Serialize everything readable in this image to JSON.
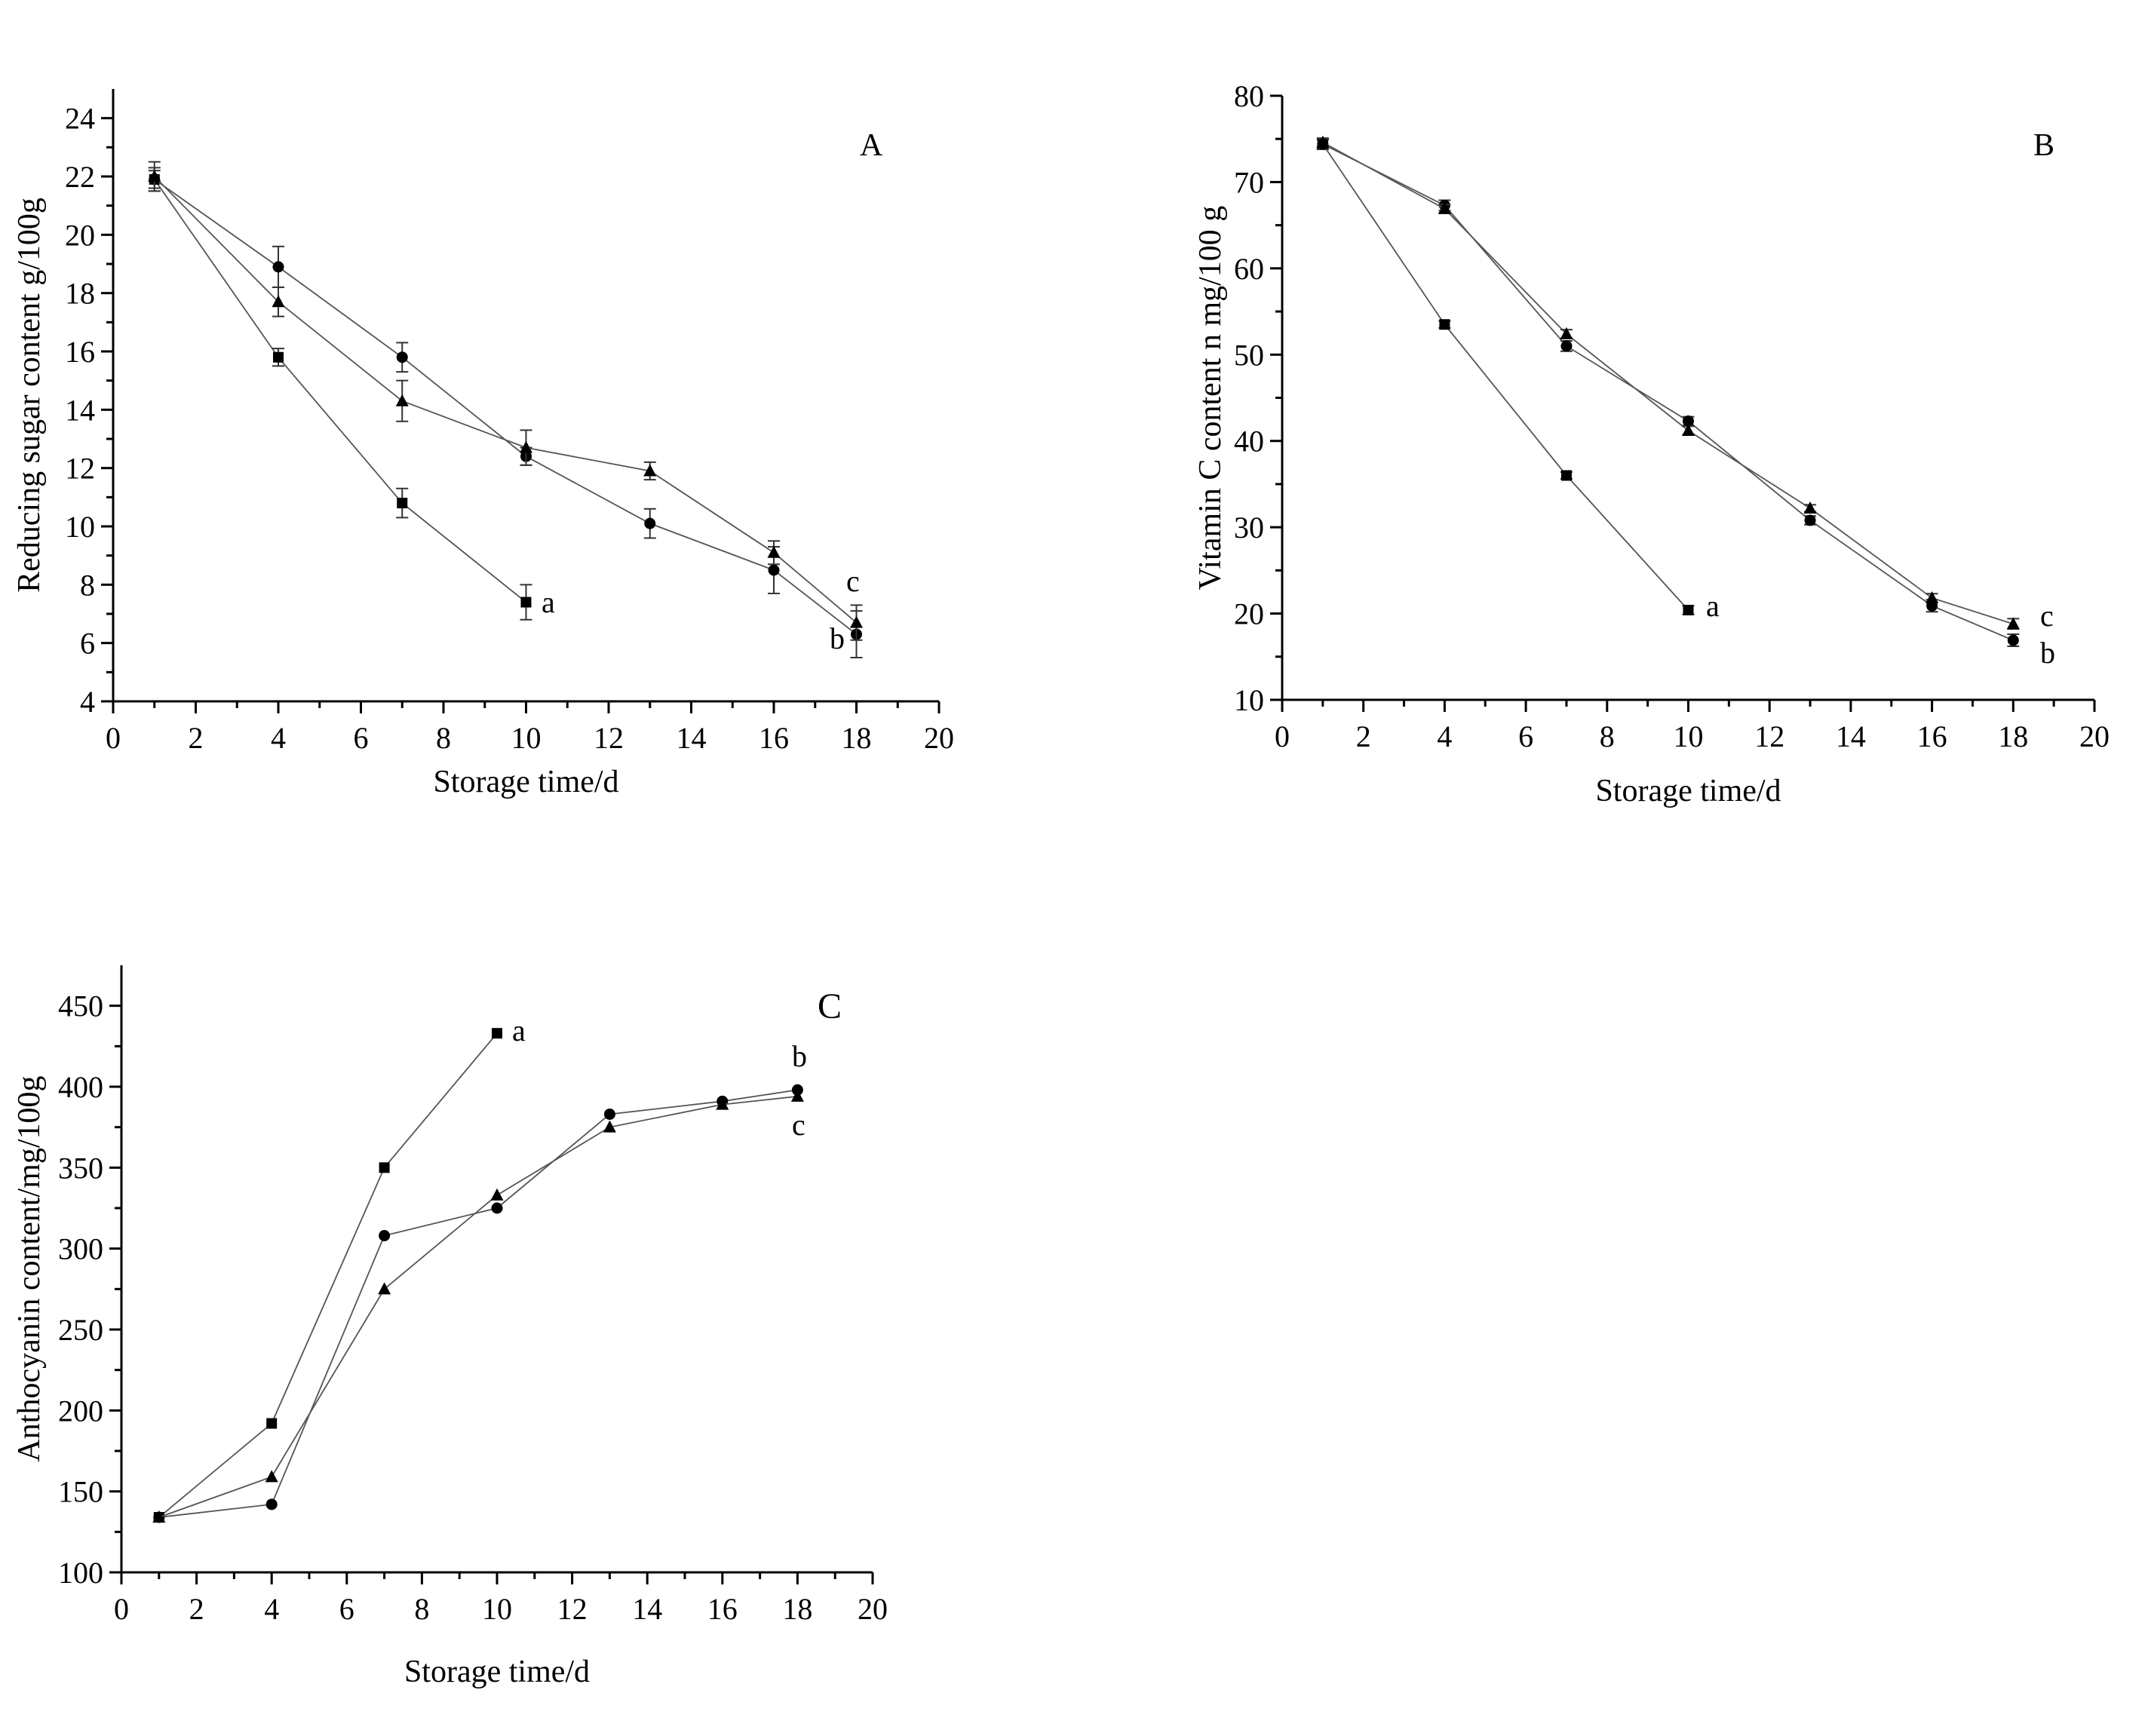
{
  "chart_data": [
    {
      "id": "A",
      "type": "line",
      "panel_label": "A",
      "xlabel": "Storage time/d",
      "ylabel": "Reducing sugar content g/100g",
      "xlim": [
        0,
        20
      ],
      "ylim": [
        4,
        25
      ],
      "xticks": [
        0,
        2,
        4,
        6,
        8,
        10,
        12,
        14,
        16,
        18,
        20
      ],
      "yticks": [
        4,
        6,
        8,
        10,
        12,
        14,
        16,
        18,
        20,
        22,
        24
      ],
      "series": [
        {
          "name": "a",
          "marker": "square",
          "x": [
            1,
            4,
            7,
            10
          ],
          "y": [
            21.9,
            15.8,
            10.8,
            7.4
          ],
          "err": [
            0.4,
            0.3,
            0.5,
            0.6
          ]
        },
        {
          "name": "b",
          "marker": "circle",
          "x": [
            1,
            4,
            7,
            10,
            13,
            16,
            18
          ],
          "y": [
            21.9,
            18.9,
            15.8,
            12.4,
            10.1,
            8.5,
            6.3
          ],
          "err": [
            0.3,
            0.7,
            0.5,
            0.3,
            0.5,
            0.8,
            0.8
          ]
        },
        {
          "name": "c",
          "marker": "triangle",
          "x": [
            1,
            4,
            7,
            10,
            13,
            16,
            18
          ],
          "y": [
            22.0,
            17.7,
            14.3,
            12.7,
            11.9,
            9.1,
            6.7
          ],
          "err": [
            0.5,
            0.5,
            0.7,
            0.6,
            0.3,
            0.4,
            0.6
          ]
        }
      ]
    },
    {
      "id": "B",
      "type": "line",
      "panel_label": "B",
      "xlabel": "Storage time/d",
      "ylabel": "Vitamin C content n mg/100 g",
      "xlim": [
        0,
        20
      ],
      "ylim": [
        10,
        80
      ],
      "xticks": [
        0,
        2,
        4,
        6,
        8,
        10,
        12,
        14,
        16,
        18,
        20
      ],
      "yticks": [
        10,
        20,
        30,
        40,
        50,
        60,
        70,
        80
      ],
      "series": [
        {
          "name": "a",
          "marker": "square",
          "x": [
            1,
            4,
            7,
            10
          ],
          "y": [
            74.4,
            53.5,
            36.0,
            20.4
          ],
          "err": [
            0.5,
            0.4,
            0.4,
            0.5
          ]
        },
        {
          "name": "b",
          "marker": "circle",
          "x": [
            1,
            4,
            7,
            10,
            13,
            16,
            18
          ],
          "y": [
            74.4,
            67.3,
            51.0,
            42.3,
            30.8,
            20.9,
            16.9
          ],
          "err": [
            0.6,
            0.6,
            0.6,
            0.5,
            0.5,
            0.7,
            0.7
          ]
        },
        {
          "name": "c",
          "marker": "triangle",
          "x": [
            1,
            4,
            7,
            10,
            13,
            16,
            18
          ],
          "y": [
            74.6,
            66.9,
            52.4,
            41.2,
            32.2,
            21.8,
            18.8
          ],
          "err": [
            0.5,
            0.5,
            0.5,
            0.5,
            0.4,
            0.5,
            0.6
          ]
        }
      ]
    },
    {
      "id": "C",
      "type": "line",
      "panel_label": "C",
      "xlabel": "Storage time/d",
      "ylabel": "Anthocyanin content/mg/100g",
      "xlim": [
        0,
        20
      ],
      "ylim": [
        100,
        475
      ],
      "xticks": [
        0,
        2,
        4,
        6,
        8,
        10,
        12,
        14,
        16,
        18,
        20
      ],
      "yticks": [
        100,
        150,
        200,
        250,
        300,
        350,
        400,
        450
      ],
      "series": [
        {
          "name": "a",
          "marker": "square",
          "x": [
            1,
            4,
            7,
            10
          ],
          "y": [
            134,
            192,
            350,
            433
          ]
        },
        {
          "name": "b",
          "marker": "circle",
          "x": [
            1,
            4,
            7,
            10,
            13,
            16,
            18
          ],
          "y": [
            134,
            142,
            308,
            325,
            383,
            391,
            398
          ]
        },
        {
          "name": "c",
          "marker": "triangle",
          "x": [
            1,
            4,
            7,
            10,
            13,
            16,
            18
          ],
          "y": [
            134,
            159,
            275,
            333,
            375,
            389,
            394
          ]
        }
      ]
    }
  ]
}
